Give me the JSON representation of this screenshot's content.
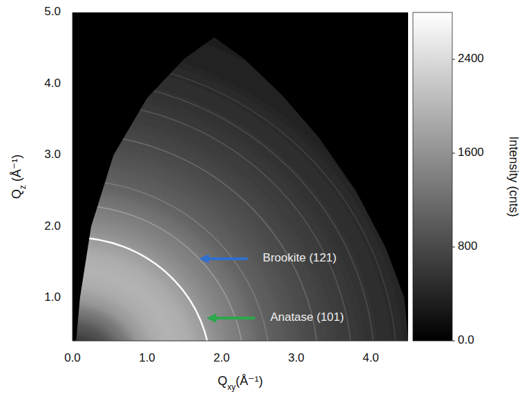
{
  "chart_data": {
    "type": "heatmap",
    "x_label": "Qxy(Å⁻¹)",
    "y_label": "Qz (Å⁻¹)",
    "xlim": [
      0,
      4.5
    ],
    "ylim": [
      0.4,
      5.0
    ],
    "xticks": [
      {
        "value": 0,
        "label": "0.0"
      },
      {
        "value": 1,
        "label": "1.0"
      },
      {
        "value": 2,
        "label": "2.0"
      },
      {
        "value": 3,
        "label": "3.0"
      },
      {
        "value": 4,
        "label": "4.0"
      }
    ],
    "yticks": [
      {
        "value": 1,
        "label": "1.0"
      },
      {
        "value": 2,
        "label": "2.0"
      },
      {
        "value": 3,
        "label": "3.0"
      },
      {
        "value": 4,
        "label": "4.0"
      },
      {
        "value": 5,
        "label": "5.0"
      }
    ],
    "grid": false,
    "colorbar": {
      "label": "Intensity (cnts)",
      "range": [
        0,
        2800
      ],
      "ticks": [
        {
          "value": 0,
          "label": "0.0"
        },
        800,
        1600,
        2400
      ]
    },
    "background": {
      "q": [
        0.4,
        0.6,
        0.8,
        1.0,
        1.2,
        1.4,
        1.6,
        1.8,
        2.0,
        2.2,
        2.4,
        2.6,
        2.8,
        3.0,
        3.2,
        3.4,
        3.6,
        3.8,
        4.0,
        4.2,
        4.4,
        4.6,
        4.8,
        5.0
      ],
      "values": [
        600,
        900,
        1300,
        1700,
        1900,
        1950,
        1900,
        1750,
        1550,
        1400,
        1250,
        1100,
        1000,
        900,
        820,
        750,
        680,
        620,
        560,
        500,
        450,
        400,
        360,
        320
      ]
    },
    "rings": {
      "q": [
        1.85,
        2.3,
        2.65,
        3.3,
        3.75,
        4.05,
        4.35
      ],
      "values": [
        2800,
        1700,
        1350,
        1150,
        950,
        820,
        700
      ]
    },
    "coverage": {
      "qxy": [
        0.05,
        0.1,
        0.25,
        0.55,
        1.0,
        1.5,
        1.9,
        2.3,
        2.8,
        3.3,
        3.8,
        4.2,
        4.45,
        4.5
      ],
      "qz": [
        0.4,
        1.0,
        2.0,
        3.0,
        3.8,
        4.35,
        4.65,
        4.35,
        3.85,
        3.25,
        2.5,
        1.7,
        1.0,
        0.4
      ]
    },
    "annotations": [
      {
        "text": "Brookite (121)",
        "x": 1.7,
        "y": 1.55,
        "color": "#2f6fd0"
      },
      {
        "text": "Anatase (101)",
        "x": 1.8,
        "y": 0.72,
        "color": "#2aa84a"
      }
    ]
  }
}
